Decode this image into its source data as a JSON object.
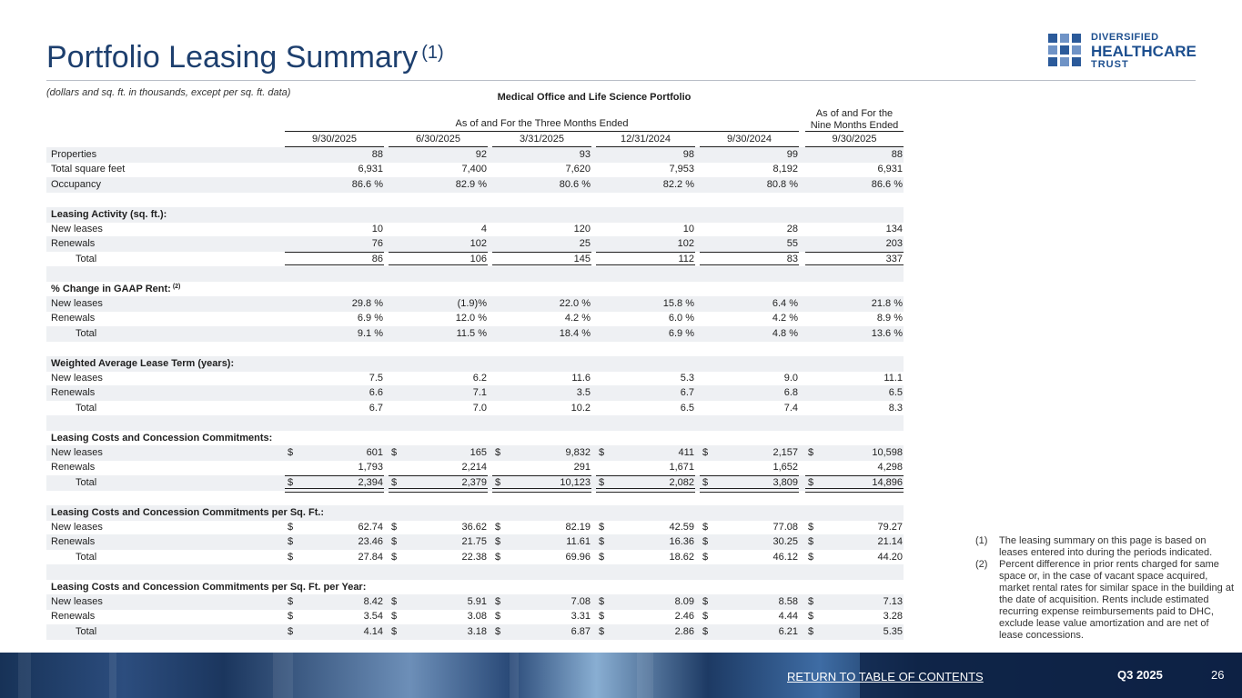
{
  "title": "Portfolio Leasing Summary",
  "title_footnote": "(1)",
  "subtitle": "(dollars and sq. ft. in thousands, except per sq. ft. data)",
  "logo": {
    "line1": "DIVERSIFIED",
    "line2": "HEALTHCARE",
    "line3": "TRUST",
    "color": "#1d4f8f"
  },
  "table": {
    "title": "Medical Office and Life Science Portfolio",
    "group1": "As of and For the Three Months Ended",
    "group2_line1": "As of and For the",
    "group2_line2": "Nine Months Ended",
    "periods": [
      "9/30/2025",
      "6/30/2025",
      "3/31/2025",
      "12/31/2024",
      "9/30/2024",
      "9/30/2025"
    ],
    "rows": [
      {
        "label": "Properties",
        "values": [
          "88",
          "92",
          "93",
          "98",
          "99",
          "88"
        ]
      },
      {
        "label": "Total square feet",
        "values": [
          "6,931",
          "7,400",
          "7,620",
          "7,953",
          "8,192",
          "6,931"
        ]
      },
      {
        "label": "Occupancy",
        "values": [
          "86.6 %",
          "82.9 %",
          "80.6 %",
          "82.2 %",
          "80.8 %",
          "86.6 %"
        ]
      },
      {
        "label": "",
        "values": []
      },
      {
        "label": "Leasing Activity (sq. ft.):",
        "bold": true,
        "values": []
      },
      {
        "label": "New leases",
        "values": [
          "10",
          "4",
          "120",
          "10",
          "28",
          "134"
        ]
      },
      {
        "label": "Renewals",
        "values": [
          "76",
          "102",
          "25",
          "102",
          "55",
          "203"
        ]
      },
      {
        "label": "Total",
        "indent": true,
        "subtotal": true,
        "double": true,
        "values": [
          "86",
          "106",
          "145",
          "112",
          "83",
          "337"
        ]
      },
      {
        "label": "",
        "values": []
      },
      {
        "label": "% Change in GAAP Rent:",
        "bold": true,
        "note": "(2)",
        "values": []
      },
      {
        "label": "New leases",
        "values": [
          "29.8 %",
          "(1.9)%",
          "22.0 %",
          "15.8 %",
          "6.4 %",
          "21.8 %"
        ]
      },
      {
        "label": "Renewals",
        "values": [
          "6.9 %",
          "12.0 %",
          "4.2 %",
          "6.0 %",
          "4.2 %",
          "8.9 %"
        ]
      },
      {
        "label": "Total",
        "indent": true,
        "values": [
          "9.1 %",
          "11.5 %",
          "18.4 %",
          "6.9 %",
          "4.8 %",
          "13.6 %"
        ]
      },
      {
        "label": "",
        "values": []
      },
      {
        "label": "Weighted Average Lease Term (years):",
        "bold": true,
        "values": []
      },
      {
        "label": "New leases",
        "values": [
          "7.5",
          "6.2",
          "11.6",
          "5.3",
          "9.0",
          "11.1"
        ]
      },
      {
        "label": "Renewals",
        "values": [
          "6.6",
          "7.1",
          "3.5",
          "6.7",
          "6.8",
          "6.5"
        ]
      },
      {
        "label": "Total",
        "indent": true,
        "values": [
          "6.7",
          "7.0",
          "10.2",
          "6.5",
          "7.4",
          "8.3"
        ]
      },
      {
        "label": "",
        "values": []
      },
      {
        "label": "Leasing Costs and Concession Commitments:",
        "bold": true,
        "values": []
      },
      {
        "label": "New leases",
        "dollar": true,
        "values": [
          "601",
          "165",
          "9,832",
          "411",
          "2,157",
          "10,598"
        ]
      },
      {
        "label": "Renewals",
        "values": [
          "1,793",
          "2,214",
          "291",
          "1,671",
          "1,652",
          "4,298"
        ]
      },
      {
        "label": "Total",
        "indent": true,
        "dollar": true,
        "subtotal": true,
        "double": true,
        "values": [
          "2,394",
          "2,379",
          "10,123",
          "2,082",
          "3,809",
          "14,896"
        ]
      },
      {
        "label": "",
        "values": []
      },
      {
        "label": "Leasing Costs and Concession Commitments per Sq. Ft.:",
        "bold": true,
        "values": []
      },
      {
        "label": "New leases",
        "dollar": true,
        "values": [
          "62.74",
          "36.62",
          "82.19",
          "42.59",
          "77.08",
          "79.27"
        ]
      },
      {
        "label": "Renewals",
        "dollar": true,
        "values": [
          "23.46",
          "21.75",
          "11.61",
          "16.36",
          "30.25",
          "21.14"
        ]
      },
      {
        "label": "Total",
        "indent": true,
        "dollar": true,
        "values": [
          "27.84",
          "22.38",
          "69.96",
          "18.62",
          "46.12",
          "44.20"
        ]
      },
      {
        "label": "",
        "values": []
      },
      {
        "label": "Leasing Costs and Concession Commitments per Sq. Ft. per Year:",
        "bold": true,
        "values": []
      },
      {
        "label": "New leases",
        "dollar": true,
        "values": [
          "8.42",
          "5.91",
          "7.08",
          "8.09",
          "8.58",
          "7.13"
        ]
      },
      {
        "label": "Renewals",
        "dollar": true,
        "values": [
          "3.54",
          "3.08",
          "3.31",
          "2.46",
          "4.44",
          "3.28"
        ]
      },
      {
        "label": "Total",
        "indent": true,
        "dollar": true,
        "values": [
          "4.14",
          "3.18",
          "6.87",
          "2.86",
          "6.21",
          "5.35"
        ]
      }
    ]
  },
  "footnotes": [
    {
      "num": "(1)",
      "text": "The leasing summary on this page is based on leases entered into during the periods indicated."
    },
    {
      "num": "(2)",
      "text": "Percent difference in prior rents charged for same space or, in the case of vacant space acquired, market rental rates for similar space in the building at the date of acquisition. Rents include estimated recurring expense reimbursements paid to DHC, exclude lease value amortization and are net of lease concessions."
    }
  ],
  "footer": {
    "return_link": "RETURN TO TABLE OF CONTENTS",
    "quarter": "Q3 2025",
    "page": "26"
  },
  "colors": {
    "title": "#1d3f6e",
    "shade": "#eef0f3",
    "footer_band": "#1b365e"
  }
}
